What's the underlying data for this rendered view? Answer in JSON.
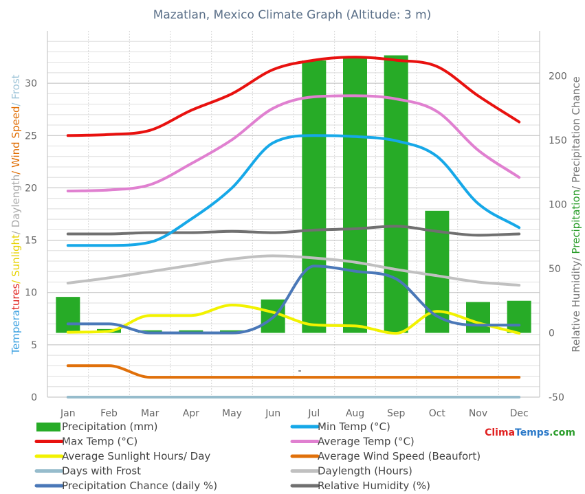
{
  "chart_data": {
    "type": "bar",
    "title": "Mazatlan, Mexico Climate Graph (Altitude: 3 m)",
    "categories": [
      "Jan",
      "Feb",
      "Mar",
      "Apr",
      "May",
      "Jun",
      "Jul",
      "Aug",
      "Sep",
      "Oct",
      "Nov",
      "Dec"
    ],
    "left_axis": {
      "ticks": [
        0,
        5,
        10,
        15,
        20,
        25,
        30
      ],
      "range": [
        0,
        35
      ],
      "title_parts": [
        {
          "text": "Temperatures",
          "color": "#e0231f"
        },
        {
          "text": "/ Sunlight",
          "color": "#e6d200"
        },
        {
          "text": "/ Daylength",
          "color": "#aaaaaa"
        },
        {
          "text": "/ Wind Speed",
          "color": "#e06c00"
        },
        {
          "text": "/ Frost",
          "color": "#9ec4d8"
        }
      ],
      "title_prefix_color": "#3aa0e0"
    },
    "right_axis": {
      "ticks": [
        -50,
        0,
        50,
        100,
        150,
        200
      ],
      "range": [
        -50,
        235
      ],
      "title_parts": [
        {
          "text": "Relative Humidity/ ",
          "color": "#777777"
        },
        {
          "text": "Precipitation",
          "color": "#2a9d2a"
        },
        {
          "text": "/ Precipitation Chance",
          "color": "#777777"
        }
      ]
    },
    "bars": {
      "name": "Precipitation (mm)",
      "color": "#27ab27",
      "axis": "right",
      "values": [
        28,
        3,
        2,
        2,
        2,
        26,
        212,
        215,
        216,
        95,
        24,
        25
      ]
    },
    "series": [
      {
        "name": "Min Temp (°C)",
        "color": "#16a8e8",
        "axis": "left",
        "values": [
          14.5,
          14.5,
          14.8,
          17.0,
          20.0,
          24.3,
          25.0,
          24.9,
          24.5,
          23.0,
          18.5,
          16.2
        ]
      },
      {
        "name": "Max Temp (°C)",
        "color": "#e8110f",
        "axis": "left",
        "values": [
          25.0,
          25.1,
          25.5,
          27.4,
          29.0,
          31.3,
          32.2,
          32.5,
          32.2,
          31.6,
          28.8,
          26.3
        ]
      },
      {
        "name": "Average Temp (°C)",
        "color": "#e080d0",
        "axis": "left",
        "values": [
          19.7,
          19.8,
          20.3,
          22.3,
          24.6,
          27.6,
          28.7,
          28.8,
          28.5,
          27.3,
          23.6,
          21.0
        ]
      },
      {
        "name": "Average Sunlight Hours/ Day",
        "color": "#f2f200",
        "axis": "left",
        "values": [
          6.2,
          6.3,
          7.8,
          7.8,
          8.8,
          8.1,
          6.9,
          6.8,
          6.1,
          8.2,
          7.1,
          6.1
        ]
      },
      {
        "name": "Average Wind Speed (Beaufort)",
        "color": "#e0700a",
        "axis": "left",
        "values": [
          3.0,
          3.0,
          1.9,
          1.9,
          1.9,
          1.9,
          1.9,
          1.9,
          1.9,
          1.9,
          1.9,
          1.9
        ]
      },
      {
        "name": "Days with Frost",
        "color": "#96bccc",
        "axis": "left",
        "values": [
          0,
          0,
          0,
          0,
          0,
          0,
          0,
          0,
          0,
          0,
          0,
          0
        ]
      },
      {
        "name": "Daylength (Hours)",
        "color": "#c0c0c0",
        "axis": "left",
        "values": [
          10.9,
          11.4,
          12.0,
          12.6,
          13.2,
          13.5,
          13.3,
          12.9,
          12.2,
          11.6,
          11.0,
          10.7
        ]
      },
      {
        "name": "Precipitation Chance (daily %)",
        "color": "#4a78b8",
        "axis": "right",
        "values": [
          7,
          7,
          0,
          0,
          0,
          12,
          52,
          48,
          42,
          13,
          6,
          6
        ]
      },
      {
        "name": "Relative Humidity (%)",
        "color": "#707070",
        "axis": "right",
        "values": [
          77,
          77,
          78,
          78,
          79,
          78,
          80,
          81,
          83,
          79,
          76,
          77
        ]
      }
    ],
    "legend_order": [
      "Precipitation (mm)",
      "Min Temp (°C)",
      "Max Temp (°C)",
      "Average Temp (°C)",
      "Average Sunlight Hours/ Day",
      "Average Wind Speed (Beaufort)",
      "Days with Frost",
      "Daylength (Hours)",
      "Precipitation Chance (daily %)",
      "Relative Humidity (%)"
    ],
    "grid": true,
    "legend_position": "bottom",
    "stray_mark": "-",
    "watermark": {
      "parts": [
        {
          "text": "Clima",
          "color": "#e02020"
        },
        {
          "text": "Temps",
          "color": "#2a78c8"
        },
        {
          "text": ".com",
          "color": "#2a9d2a"
        }
      ]
    }
  }
}
